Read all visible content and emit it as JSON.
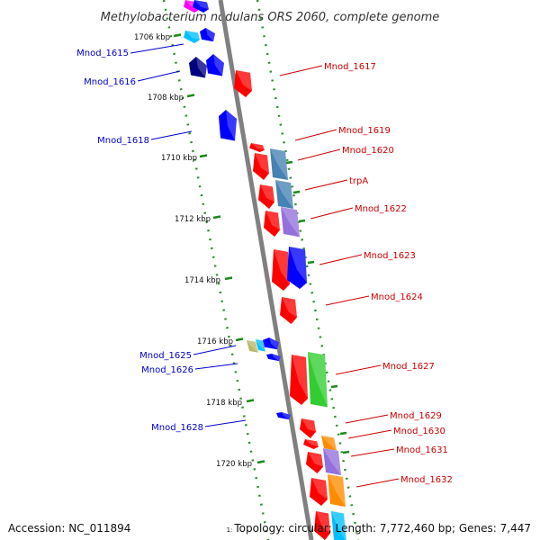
{
  "title": "Methylobacterium nodulans ORS 2060, complete genome",
  "footer": {
    "accession": "Accession: NC_011894",
    "topology_prefix": "1:",
    "topology": "Topology: circular; Length: 7,772,460 bp; Genes: 7,447"
  },
  "colors": {
    "backbone": "#808080",
    "tick": "#1a8a1a",
    "left_label": "#0000cc",
    "right_label": "#cc0000",
    "strand_dots": "#2f8f2f"
  },
  "scale_ticks": [
    "1706 kbp",
    "1708 kbp",
    "1710 kbp",
    "1712 kbp",
    "1714 kbp",
    "1716 kbp",
    "1718 kbp",
    "1720 kbp"
  ],
  "genes": {
    "left": [
      "Mnod_1615",
      "Mnod_1616",
      "Mnod_1618",
      "Mnod_1625",
      "Mnod_1626",
      "Mnod_1628"
    ],
    "right": [
      "Mnod_1617",
      "Mnod_1619",
      "Mnod_1620",
      "trpA",
      "Mnod_1622",
      "Mnod_1623",
      "Mnod_1624",
      "Mnod_1627",
      "Mnod_1629",
      "Mnod_1630",
      "Mnod_1631",
      "Mnod_1632"
    ]
  },
  "feature_colors": [
    "#ff0000",
    "#0000ff",
    "#000080",
    "#4682b4",
    "#9370db",
    "#32cd32",
    "#ff8c00",
    "#ff00ff",
    "#00bfff",
    "#bdb76b"
  ]
}
